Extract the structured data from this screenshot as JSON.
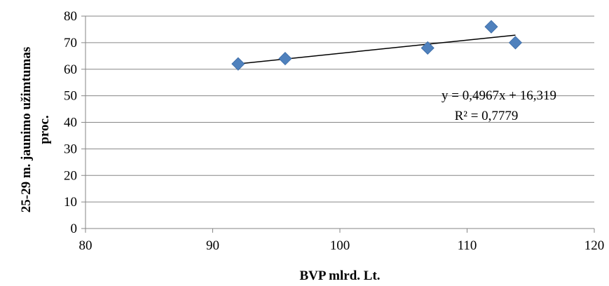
{
  "chart_data": {
    "type": "scatter",
    "xlabel": "BVP mlrd. Lt.",
    "ylabel_lines": [
      "25-29 m. jaunimo užimtumas",
      "proc."
    ],
    "xlim": [
      80,
      120
    ],
    "ylim": [
      0,
      80
    ],
    "x_ticks": [
      80,
      90,
      100,
      110,
      120
    ],
    "y_ticks": [
      0,
      10,
      20,
      30,
      40,
      50,
      60,
      70,
      80
    ],
    "grid": "horizontal",
    "series": [
      {
        "points": [
          {
            "x": 92.0,
            "y": 62
          },
          {
            "x": 95.7,
            "y": 64
          },
          {
            "x": 106.9,
            "y": 68
          },
          {
            "x": 111.9,
            "y": 76
          },
          {
            "x": 113.8,
            "y": 70
          }
        ],
        "color": "#4f81bd",
        "marker": "diamond"
      }
    ],
    "trendline": {
      "type": "linear",
      "slope": 0.4967,
      "intercept": 16.319,
      "x_range": [
        92.0,
        113.8
      ],
      "color": "#000000",
      "equation_label": "y = 0,4967x + 16,319",
      "r2_label": "R² = 0,7779"
    }
  }
}
